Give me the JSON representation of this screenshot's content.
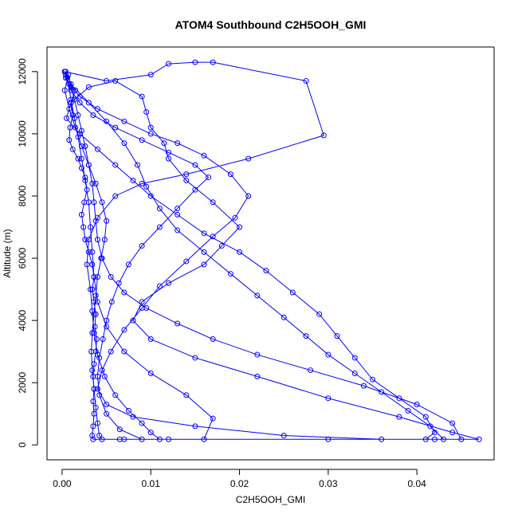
{
  "chart_data": {
    "type": "scatter",
    "title": "ATOM4 Southbound C2H5OOH_GMI",
    "xlabel": "C2H5OOH_GMI",
    "ylabel": "Altitude (m)",
    "xlim": [
      -0.0017,
      0.0487
    ],
    "ylim": [
      -480,
      12790
    ],
    "x_ticks": [
      0.0,
      0.01,
      0.02,
      0.03,
      0.04
    ],
    "x_tick_labels": [
      "0.00",
      "0.01",
      "0.02",
      "0.03",
      "0.04"
    ],
    "y_ticks": [
      0,
      2000,
      4000,
      6000,
      8000,
      10000,
      12000
    ],
    "y_tick_labels": [
      "0",
      "2000",
      "4000",
      "6000",
      "8000",
      "10000",
      "12000"
    ],
    "grid": false,
    "legend": "none",
    "connected": true,
    "marker": "open-circle",
    "series": [
      {
        "color": "#0000ff",
        "points": [
          [
            0.0003,
            12000
          ],
          [
            0.0004,
            11800
          ],
          [
            0.0008,
            11600
          ],
          [
            0.0015,
            11400
          ],
          [
            0.001,
            11000
          ],
          [
            0.0012,
            10600
          ],
          [
            0.0009,
            10200
          ],
          [
            0.0008,
            9800
          ],
          [
            0.0012,
            9500
          ],
          [
            0.0018,
            9200
          ],
          [
            0.0022,
            8900
          ],
          [
            0.0026,
            8600
          ],
          [
            0.0028,
            8200
          ],
          [
            0.0025,
            7800
          ],
          [
            0.0022,
            7400
          ],
          [
            0.0024,
            7000
          ],
          [
            0.0026,
            6600
          ],
          [
            0.003,
            6200
          ],
          [
            0.0034,
            5800
          ],
          [
            0.0036,
            5400
          ],
          [
            0.0034,
            5000
          ],
          [
            0.0036,
            4600
          ],
          [
            0.0038,
            4200
          ],
          [
            0.0037,
            3800
          ],
          [
            0.0039,
            3400
          ],
          [
            0.0038,
            3000
          ],
          [
            0.0036,
            2600
          ],
          [
            0.0035,
            2200
          ],
          [
            0.0036,
            1800
          ],
          [
            0.0035,
            1400
          ],
          [
            0.0036,
            1000
          ],
          [
            0.0035,
            600
          ],
          [
            0.0034,
            300
          ],
          [
            0.0035,
            180
          ],
          [
            0.007,
            180
          ],
          [
            0.012,
            180
          ],
          [
            0.03,
            180
          ],
          [
            0.042,
            180
          ],
          [
            0.047,
            180
          ],
          [
            0.044,
            400
          ],
          [
            0.038,
            900
          ],
          [
            0.03,
            1500
          ],
          [
            0.022,
            2200
          ],
          [
            0.015,
            2800
          ],
          [
            0.01,
            3400
          ],
          [
            0.008,
            4000
          ],
          [
            0.009,
            4600
          ],
          [
            0.012,
            5200
          ],
          [
            0.016,
            5800
          ],
          [
            0.018,
            6400
          ],
          [
            0.02,
            7000
          ],
          [
            0.017,
            7800
          ],
          [
            0.014,
            8500
          ],
          [
            0.012,
            9200
          ],
          [
            0.0115,
            9700
          ],
          [
            0.01,
            10200
          ],
          [
            0.0095,
            10700
          ],
          [
            0.009,
            11200
          ],
          [
            0.006,
            11700
          ],
          [
            0.003,
            11500
          ],
          [
            0.001,
            11000
          ],
          [
            0.0005,
            10500
          ],
          [
            0.002,
            10000
          ],
          [
            0.004,
            9500
          ],
          [
            0.006,
            9000
          ],
          [
            0.008,
            8500
          ],
          [
            0.01,
            8000
          ],
          [
            0.013,
            7400
          ],
          [
            0.016,
            6800
          ],
          [
            0.02,
            6200
          ],
          [
            0.023,
            5600
          ],
          [
            0.026,
            4900
          ],
          [
            0.029,
            4200
          ],
          [
            0.031,
            3500
          ],
          [
            0.033,
            2800
          ],
          [
            0.035,
            2100
          ],
          [
            0.038,
            1500
          ],
          [
            0.041,
            900
          ],
          [
            0.042,
            400
          ],
          [
            0.041,
            180
          ],
          [
            0.036,
            180
          ],
          [
            0.025,
            300
          ],
          [
            0.015,
            600
          ],
          [
            0.008,
            900
          ],
          [
            0.005,
            1300
          ],
          [
            0.004,
            1800
          ],
          [
            0.0045,
            2400
          ],
          [
            0.0055,
            3000
          ],
          [
            0.007,
            3700
          ],
          [
            0.009,
            4400
          ],
          [
            0.011,
            5100
          ],
          [
            0.014,
            5900
          ],
          [
            0.017,
            6700
          ],
          [
            0.0195,
            7300
          ],
          [
            0.021,
            8000
          ],
          [
            0.019,
            8700
          ],
          [
            0.016,
            9300
          ],
          [
            0.013,
            9700
          ],
          [
            0.01,
            10000
          ],
          [
            0.007,
            10400
          ],
          [
            0.004,
            10800
          ],
          [
            0.002,
            11200
          ],
          [
            0.0008,
            11600
          ],
          [
            0.0003,
            12000
          ],
          [
            0.005,
            11700
          ],
          [
            0.01,
            11900
          ],
          [
            0.012,
            12250
          ],
          [
            0.015,
            12300
          ],
          [
            0.017,
            12300
          ],
          [
            0.0275,
            11700
          ],
          [
            0.0295,
            9950
          ],
          [
            0.021,
            9200
          ],
          [
            0.014,
            8700
          ],
          [
            0.009,
            8400
          ],
          [
            0.006,
            8000
          ],
          [
            0.004,
            7300
          ],
          [
            0.003,
            6600
          ],
          [
            0.0028,
            5800
          ],
          [
            0.0032,
            5000
          ],
          [
            0.0034,
            4300
          ],
          [
            0.0036,
            3600
          ],
          [
            0.004,
            2900
          ],
          [
            0.0048,
            2200
          ],
          [
            0.006,
            1600
          ],
          [
            0.0075,
            1100
          ],
          [
            0.009,
            700
          ],
          [
            0.01,
            400
          ],
          [
            0.011,
            180
          ],
          [
            0.016,
            180
          ],
          [
            0.017,
            850
          ],
          [
            0.014,
            1600
          ],
          [
            0.01,
            2300
          ],
          [
            0.007,
            3000
          ],
          [
            0.005,
            3800
          ],
          [
            0.004,
            4600
          ],
          [
            0.0036,
            5400
          ],
          [
            0.0034,
            6200
          ],
          [
            0.0032,
            7000
          ],
          [
            0.003,
            7800
          ],
          [
            0.0026,
            8500
          ],
          [
            0.0022,
            9200
          ],
          [
            0.0018,
            9900
          ],
          [
            0.0014,
            10500
          ],
          [
            0.001,
            11100
          ],
          [
            0.0006,
            11800
          ],
          [
            0.0004,
            12000
          ],
          [
            0.001,
            11600
          ],
          [
            0.003,
            11000
          ],
          [
            0.005,
            10400
          ],
          [
            0.007,
            9700
          ],
          [
            0.0085,
            9000
          ],
          [
            0.0095,
            8300
          ],
          [
            0.011,
            7600
          ],
          [
            0.013,
            6900
          ],
          [
            0.016,
            6200
          ],
          [
            0.019,
            5500
          ],
          [
            0.022,
            4800
          ],
          [
            0.025,
            4100
          ],
          [
            0.0275,
            3500
          ],
          [
            0.03,
            2900
          ],
          [
            0.033,
            2300
          ],
          [
            0.036,
            1700
          ],
          [
            0.039,
            1100
          ],
          [
            0.0415,
            600
          ],
          [
            0.043,
            180
          ],
          [
            0.045,
            180
          ],
          [
            0.044,
            700
          ],
          [
            0.04,
            1300
          ],
          [
            0.034,
            1900
          ],
          [
            0.028,
            2400
          ],
          [
            0.022,
            2900
          ],
          [
            0.017,
            3400
          ],
          [
            0.013,
            3900
          ],
          [
            0.0095,
            4400
          ],
          [
            0.007,
            4900
          ],
          [
            0.0055,
            5400
          ],
          [
            0.0045,
            6000
          ],
          [
            0.004,
            6600
          ],
          [
            0.0038,
            7200
          ],
          [
            0.0036,
            7800
          ],
          [
            0.0034,
            8400
          ],
          [
            0.003,
            9000
          ],
          [
            0.0026,
            9600
          ],
          [
            0.0022,
            10100
          ],
          [
            0.0018,
            10600
          ],
          [
            0.0014,
            11100
          ],
          [
            0.001,
            11500
          ],
          [
            0.0007,
            11900
          ],
          [
            0.0003,
            11400
          ],
          [
            0.0008,
            10800
          ],
          [
            0.0015,
            10200
          ],
          [
            0.0022,
            9600
          ],
          [
            0.003,
            9000
          ],
          [
            0.0038,
            8400
          ],
          [
            0.0045,
            7800
          ],
          [
            0.005,
            7200
          ],
          [
            0.0048,
            6600
          ],
          [
            0.0044,
            6000
          ],
          [
            0.004,
            5400
          ],
          [
            0.0038,
            4800
          ],
          [
            0.0036,
            4200
          ],
          [
            0.0034,
            3600
          ],
          [
            0.0033,
            3000
          ],
          [
            0.0034,
            2400
          ],
          [
            0.0036,
            1800
          ],
          [
            0.0038,
            1200
          ],
          [
            0.004,
            700
          ],
          [
            0.0042,
            300
          ],
          [
            0.0045,
            180
          ],
          [
            0.0065,
            180
          ],
          [
            0.009,
            180
          ],
          [
            0.0065,
            500
          ],
          [
            0.005,
            1000
          ],
          [
            0.0042,
            1600
          ],
          [
            0.004,
            2200
          ],
          [
            0.0042,
            2800
          ],
          [
            0.0046,
            3400
          ],
          [
            0.005,
            4000
          ],
          [
            0.0056,
            4600
          ],
          [
            0.0064,
            5200
          ],
          [
            0.0075,
            5800
          ],
          [
            0.009,
            6400
          ],
          [
            0.011,
            7000
          ],
          [
            0.013,
            7600
          ],
          [
            0.015,
            8200
          ],
          [
            0.0165,
            8600
          ],
          [
            0.015,
            9000
          ],
          [
            0.012,
            9400
          ],
          [
            0.009,
            9800
          ],
          [
            0.006,
            10200
          ],
          [
            0.0035,
            10600
          ],
          [
            0.002,
            11000
          ],
          [
            0.001,
            11400
          ],
          [
            0.0004,
            11900
          ]
        ]
      }
    ]
  }
}
